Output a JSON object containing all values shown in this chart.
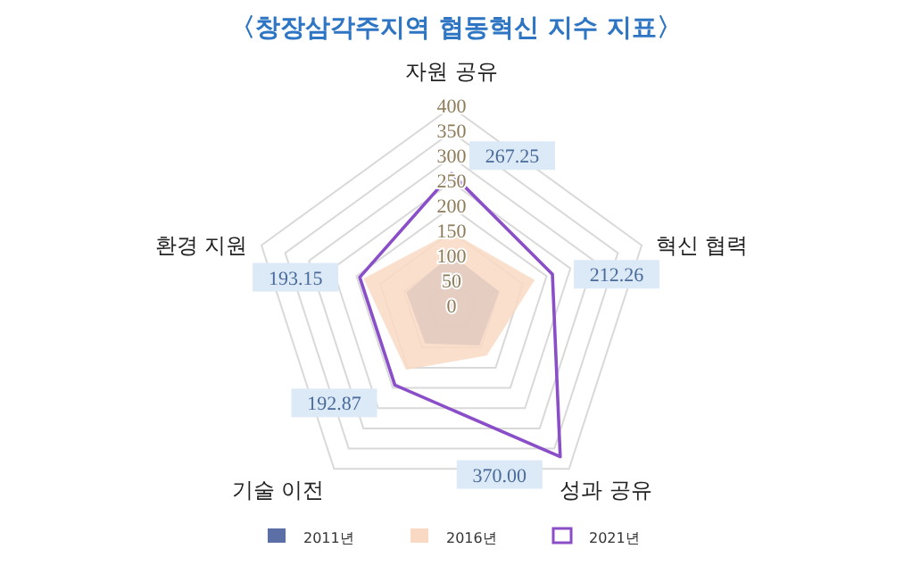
{
  "chart_data": {
    "type": "radar",
    "title": "〈창장삼각주지역 협동혁신 지수 지표〉",
    "categories": [
      "자원 공유",
      "혁신 협력",
      "성과 공유",
      "기술 이전",
      "환경 지원"
    ],
    "ylim": [
      0,
      400
    ],
    "yticks": [
      0,
      50,
      100,
      150,
      200,
      250,
      300,
      350,
      400
    ],
    "grid": true,
    "legend": "bottom",
    "series": [
      {
        "name": "2011년",
        "color": "#5b6ea6",
        "values": [
          105,
          100,
          95,
          90,
          95
        ]
      },
      {
        "name": "2016년",
        "color": "#f9d9c4",
        "values": [
          150,
          175,
          120,
          155,
          185
        ]
      },
      {
        "name": "2021년",
        "color": "#8a4fc8",
        "values": [
          267.25,
          212.26,
          370.0,
          192.87,
          193.15
        ],
        "value_labels": [
          "267.25",
          "212.26",
          "370.00",
          "192.87",
          "193.15"
        ]
      }
    ]
  }
}
